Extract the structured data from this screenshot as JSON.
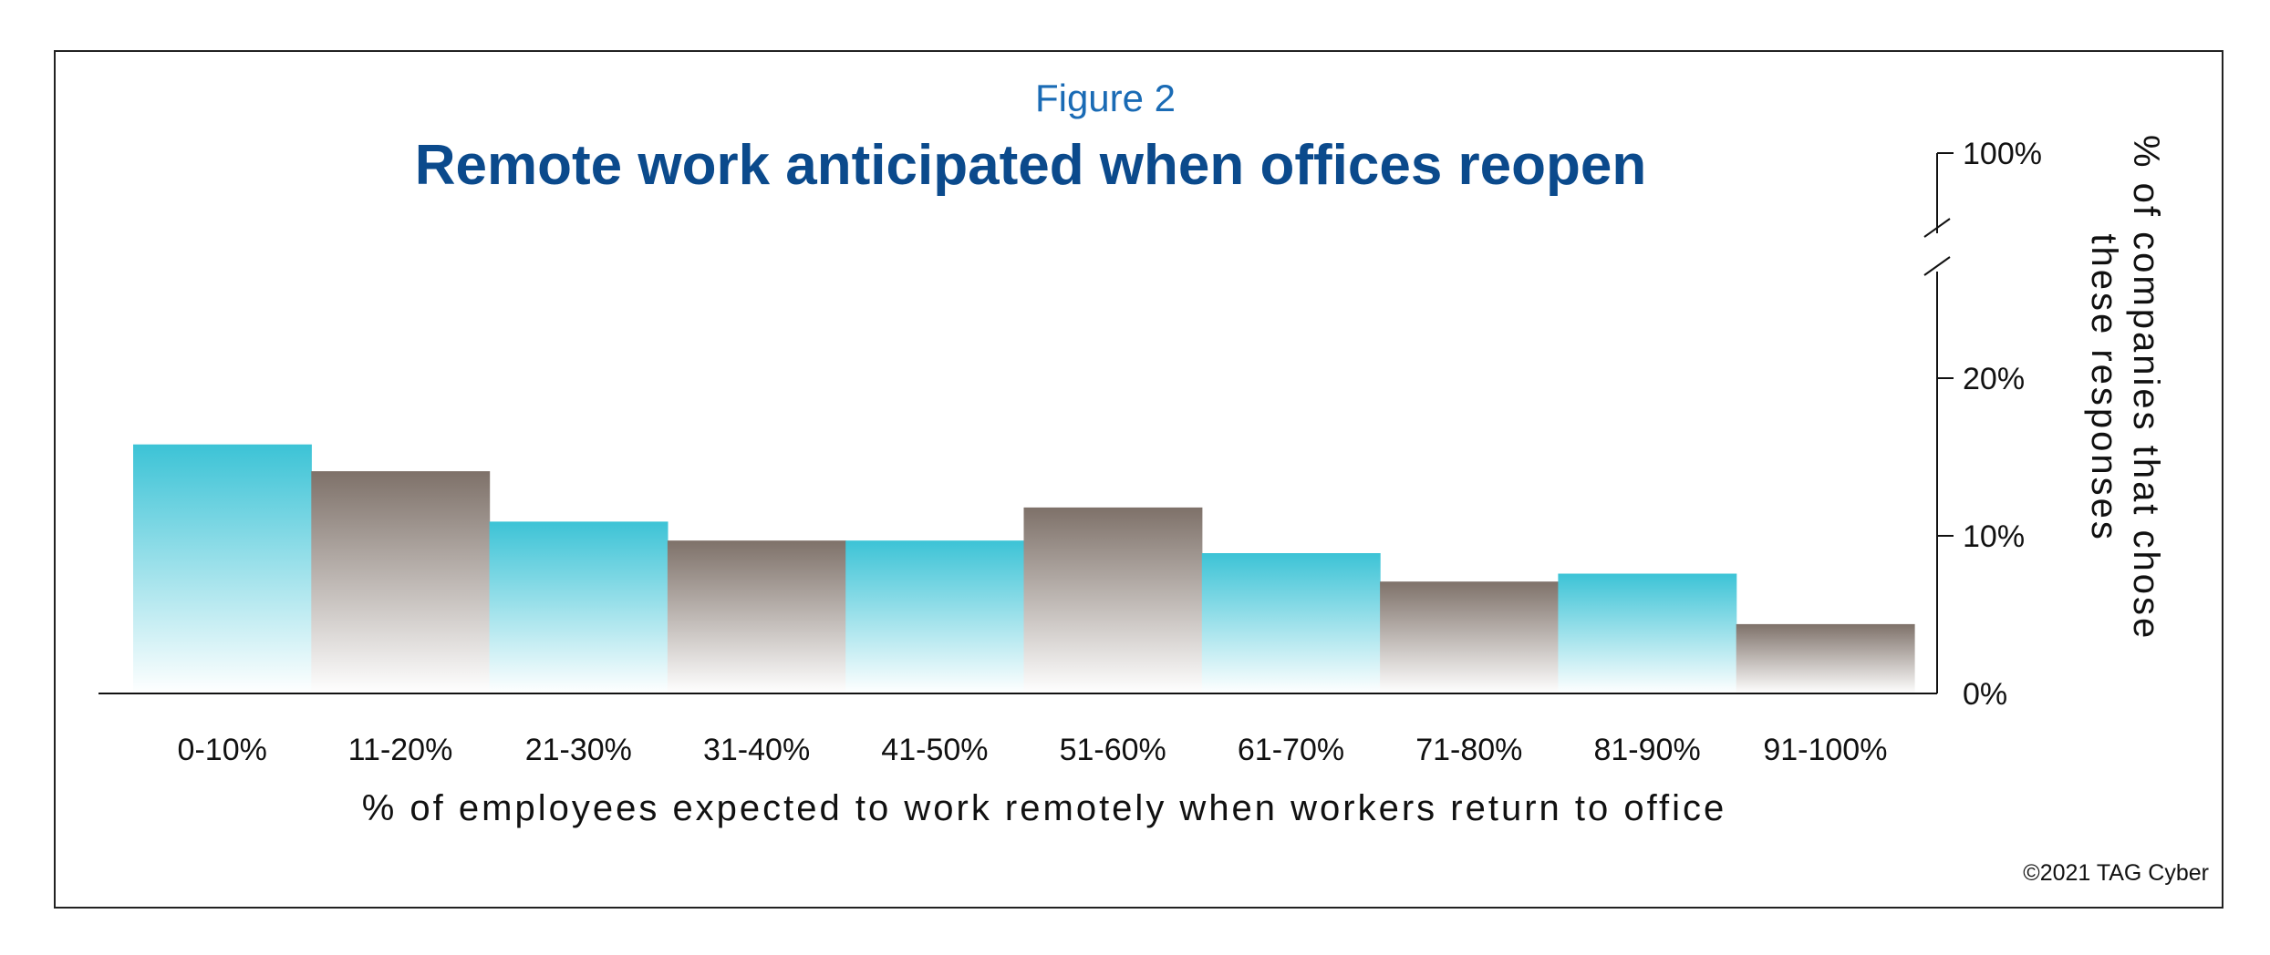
{
  "figure_label": "Figure 2",
  "copyright": "©2021 TAG Cyber",
  "colors": {
    "title": "#0b4a8c",
    "figure_label": "#1a6bb5",
    "teal": "#3cc3d6",
    "gray": "#7e7169",
    "text": "#111111",
    "frame": "#222222"
  },
  "chart_data": {
    "type": "bar",
    "title": "Remote work anticipated when offices reopen",
    "xlabel": "% of employees expected to work remotely when workers return to office",
    "ylabel": "% of companies that chose these responses",
    "categories": [
      "0-10%",
      "11-20%",
      "21-30%",
      "31-40%",
      "41-50%",
      "51-60%",
      "61-70%",
      "71-80%",
      "81-90%",
      "91-100%"
    ],
    "values": [
      15.8,
      14.1,
      10.9,
      9.7,
      9.7,
      11.8,
      8.9,
      7.1,
      7.6,
      4.4
    ],
    "bar_colors": [
      "teal",
      "gray",
      "teal",
      "gray",
      "teal",
      "gray",
      "teal",
      "gray",
      "teal",
      "gray"
    ],
    "y_ticks": [
      {
        "value": 0,
        "label": "0%"
      },
      {
        "value": 10,
        "label": "10%"
      },
      {
        "value": 20,
        "label": "20%"
      },
      {
        "value": 100,
        "label": "100%"
      }
    ],
    "axis_break": true,
    "ylim": [
      0,
      100
    ],
    "y_axis_side": "right",
    "grid": false,
    "legend": "none"
  }
}
